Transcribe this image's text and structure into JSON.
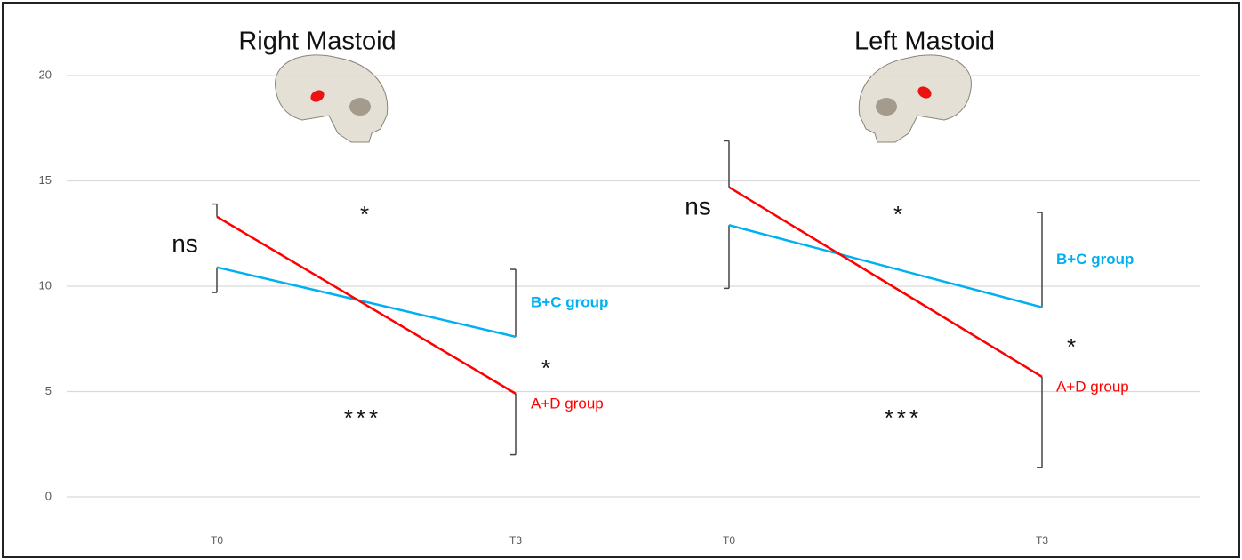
{
  "chart_data": [
    {
      "type": "line",
      "title": "Right Mastoid",
      "categories": [
        "T0",
        "T3"
      ],
      "ylim": [
        0,
        20
      ],
      "yticks": [
        0,
        5,
        10,
        15,
        20
      ],
      "grid": true,
      "series": [
        {
          "name": "B+C group",
          "color": "#00b0f0",
          "values": [
            10.9,
            7.6
          ],
          "error_upper": [
            null,
            3.2
          ],
          "error_lower": [
            1.2,
            null
          ]
        },
        {
          "name": "A+D group",
          "color": "#ff0000",
          "values": [
            13.3,
            4.9
          ],
          "error_upper": [
            0.6,
            null
          ],
          "error_lower": [
            null,
            2.9
          ]
        }
      ],
      "annotations": [
        "ns",
        "*",
        "***",
        "*"
      ]
    },
    {
      "type": "line",
      "title": "Left Mastoid",
      "categories": [
        "T0",
        "T3"
      ],
      "ylim": [
        0,
        20
      ],
      "series": [
        {
          "name": "B+C group",
          "color": "#00b0f0",
          "values": [
            12.9,
            9.0
          ],
          "error_upper": [
            null,
            4.5
          ],
          "error_lower": [
            3.0,
            null
          ]
        },
        {
          "name": "A+D group",
          "color": "#ff0000",
          "values": [
            14.7,
            5.7
          ],
          "error_upper": [
            2.2,
            null
          ],
          "error_lower": [
            null,
            4.3
          ]
        }
      ],
      "annotations": [
        "ns",
        "*",
        "***",
        "*"
      ]
    }
  ]
}
